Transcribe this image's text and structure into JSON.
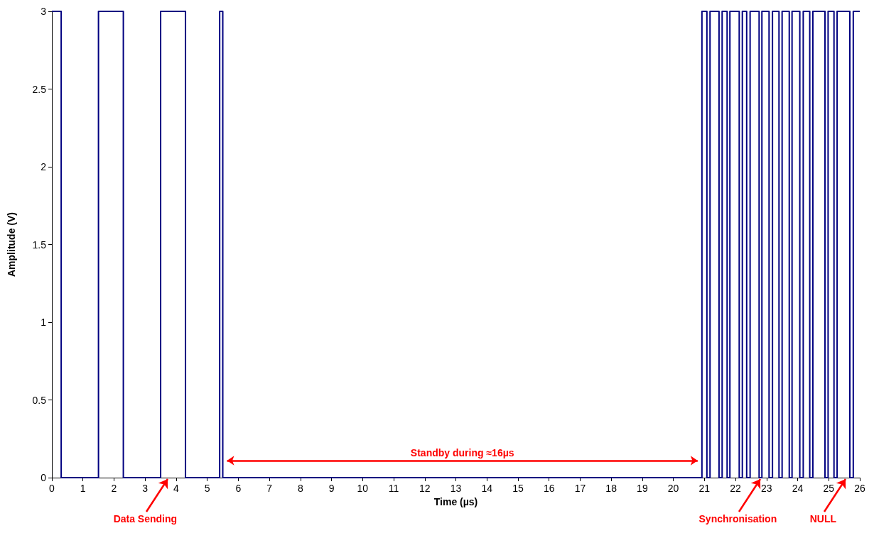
{
  "chart_data": {
    "type": "step",
    "xlabel": "Time (µs)",
    "ylabel": "Amplitude (V)",
    "x": [
      0,
      0.3,
      1.5,
      2.3,
      3.5,
      4.3,
      5.4,
      5.5,
      20.92,
      21.08,
      21.18,
      21.47,
      21.57,
      21.73,
      21.82,
      22.12,
      22.22,
      22.36,
      22.47,
      22.76,
      22.85,
      23.08,
      23.19,
      23.4,
      23.5,
      23.73,
      23.82,
      24.07,
      24.18,
      24.39,
      24.49,
      24.88,
      24.98,
      25.17,
      25.27,
      25.68,
      25.79,
      26
    ],
    "series": [
      {
        "color": "#000080",
        "values": [
          3,
          0,
          3,
          0,
          3,
          0,
          3,
          0,
          3,
          0,
          3,
          0,
          3,
          0,
          3,
          0,
          3,
          0,
          3,
          0,
          3,
          0,
          3,
          0,
          3,
          0,
          3,
          0,
          3,
          0,
          3,
          0,
          3,
          0,
          3,
          0,
          3,
          3
        ]
      }
    ],
    "xlim": [
      0,
      26
    ],
    "xticks": [
      0,
      1,
      2,
      3,
      4,
      5,
      6,
      7,
      8,
      9,
      10,
      11,
      12,
      13,
      14,
      15,
      16,
      17,
      18,
      19,
      20,
      21,
      22,
      23,
      24,
      25,
      26
    ],
    "ylim": [
      0,
      3
    ],
    "yticks": [
      0,
      0.5,
      1,
      1.5,
      2,
      2.5,
      3
    ],
    "grid": false,
    "marker": "none",
    "line_style": "solid",
    "annotations": [
      "Data Sending",
      "Standby during ≈16µs",
      "Synchronisation",
      "NULL"
    ]
  }
}
